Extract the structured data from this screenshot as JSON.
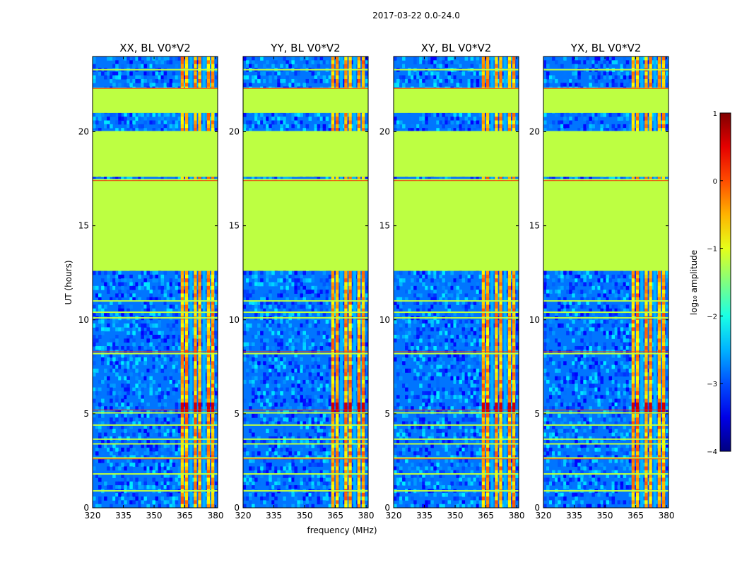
{
  "suptitle": "2017-03-22 0.0-24.0",
  "chart_data": {
    "type": "heatmap",
    "xlabel": "frequency (MHz)",
    "ylabel": "UT (hours)",
    "xlim": [
      320,
      381
    ],
    "ylim": [
      0,
      24
    ],
    "xticks": [
      320,
      335,
      350,
      365,
      380
    ],
    "yticks": [
      0,
      5,
      10,
      15,
      20
    ],
    "panels": [
      {
        "title": "XX, BL V0*V2"
      },
      {
        "title": "YY, BL V0*V2"
      },
      {
        "title": "XY, BL V0*V2"
      },
      {
        "title": "YX, BL V0*V2"
      }
    ],
    "colorbar": {
      "label": "log₁₀ amplitude",
      "range": [
        -4,
        1
      ],
      "ticks": [
        "1",
        "0",
        "−1",
        "−2",
        "−3",
        "−4"
      ],
      "colormap": "jet"
    },
    "flagged_time_ranges": [
      [
        12.6,
        17.4
      ],
      [
        17.6,
        20.0
      ],
      [
        21.0,
        22.3
      ]
    ],
    "flag_level": -1.2,
    "signal_band_mhz": [
      363,
      380
    ],
    "background_level": -2.8,
    "signal_level": 0.0
  }
}
